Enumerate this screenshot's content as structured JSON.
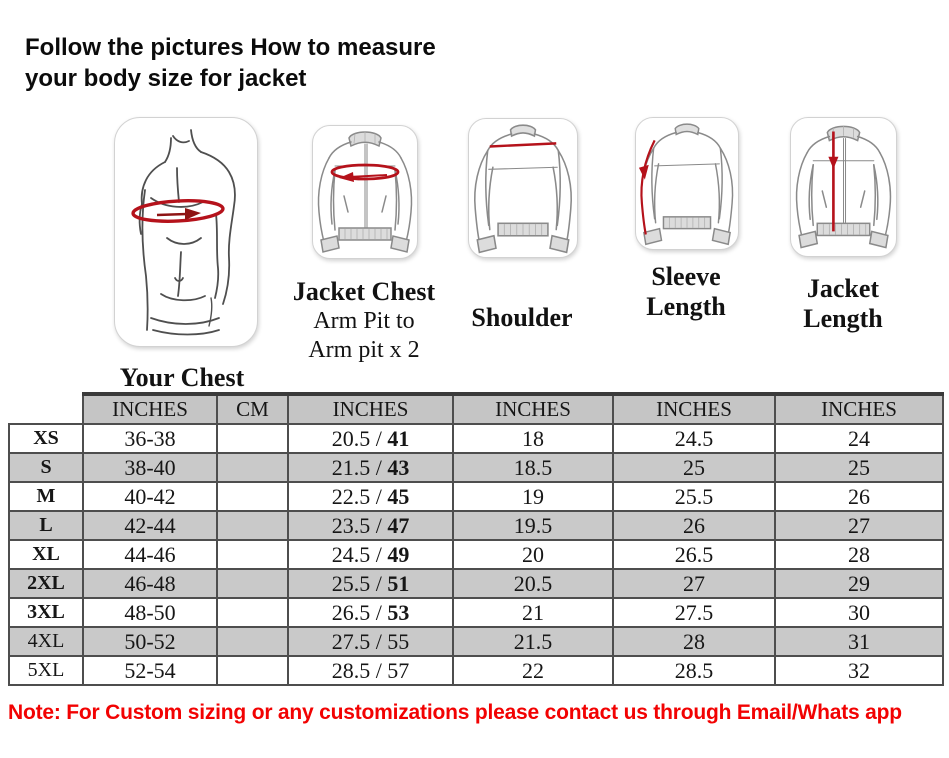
{
  "header": {
    "title_line1": "Follow the pictures How to measure",
    "title_line2": "your body size for jacket"
  },
  "figures": {
    "torso": {
      "label": "Your Chest"
    },
    "jacket_chest": {
      "label": "Jacket Chest",
      "sub_line1": "Arm Pit to",
      "sub_line2": "Arm pit x 2"
    },
    "shoulder": {
      "label": "Shoulder"
    },
    "sleeve": {
      "label_line1": "Sleeve",
      "label_line2": "Length"
    },
    "jacket_length": {
      "label_line1": "Jacket",
      "label_line2": "Length"
    }
  },
  "table": {
    "column_headers": [
      "INCHES",
      "CM",
      "INCHES",
      "INCHES",
      "INCHES",
      "INCHES"
    ],
    "rows": [
      {
        "size": "XS",
        "bold_size": true,
        "chest_inches": "36-38",
        "cm": "",
        "jacket_chest": "20.5 / ",
        "jacket_chest_bold": "41",
        "shoulder": "18",
        "sleeve_length": "24.5",
        "jacket_length": "24"
      },
      {
        "size": "S",
        "bold_size": true,
        "chest_inches": "38-40",
        "cm": "",
        "jacket_chest": "21.5 / ",
        "jacket_chest_bold": "43",
        "shoulder": "18.5",
        "sleeve_length": "25",
        "jacket_length": "25"
      },
      {
        "size": "M",
        "bold_size": true,
        "chest_inches": "40-42",
        "cm": "",
        "jacket_chest": "22.5 / ",
        "jacket_chest_bold": "45",
        "shoulder": "19",
        "sleeve_length": "25.5",
        "jacket_length": "26"
      },
      {
        "size": "L",
        "bold_size": true,
        "chest_inches": "42-44",
        "cm": "",
        "jacket_chest": "23.5 / ",
        "jacket_chest_bold": "47",
        "shoulder": "19.5",
        "sleeve_length": "26",
        "jacket_length": "27"
      },
      {
        "size": "XL",
        "bold_size": true,
        "chest_inches": "44-46",
        "cm": "",
        "jacket_chest": "24.5 / ",
        "jacket_chest_bold": "49",
        "shoulder": "20",
        "sleeve_length": "26.5",
        "jacket_length": "28"
      },
      {
        "size": "2XL",
        "bold_size": true,
        "chest_inches": "46-48",
        "cm": "",
        "jacket_chest": "25.5 / ",
        "jacket_chest_bold": "51",
        "shoulder": "20.5",
        "sleeve_length": "27",
        "jacket_length": "29"
      },
      {
        "size": "3XL",
        "bold_size": true,
        "chest_inches": "48-50",
        "cm": "",
        "jacket_chest": "26.5 / ",
        "jacket_chest_bold": "53",
        "shoulder": "21",
        "sleeve_length": "27.5",
        "jacket_length": "30"
      },
      {
        "size": "4XL",
        "bold_size": false,
        "chest_inches": "50-52",
        "cm": "",
        "jacket_chest": "27.5 / 55",
        "jacket_chest_bold": "",
        "shoulder": "21.5",
        "sleeve_length": "28",
        "jacket_length": "31"
      },
      {
        "size": "5XL",
        "bold_size": false,
        "chest_inches": "52-54",
        "cm": "",
        "jacket_chest": "28.5 / 57",
        "jacket_chest_bold": "",
        "shoulder": "22",
        "sleeve_length": "28.5",
        "jacket_length": "32"
      }
    ]
  },
  "note": {
    "text": "Note: For Custom sizing or any customizations please contact us through Email/Whats app"
  },
  "colors": {
    "measure_red": "#b5121b",
    "note_red": "#f20202",
    "header_gray": "#c5c5c5",
    "row_gray": "#c9c9c9"
  }
}
